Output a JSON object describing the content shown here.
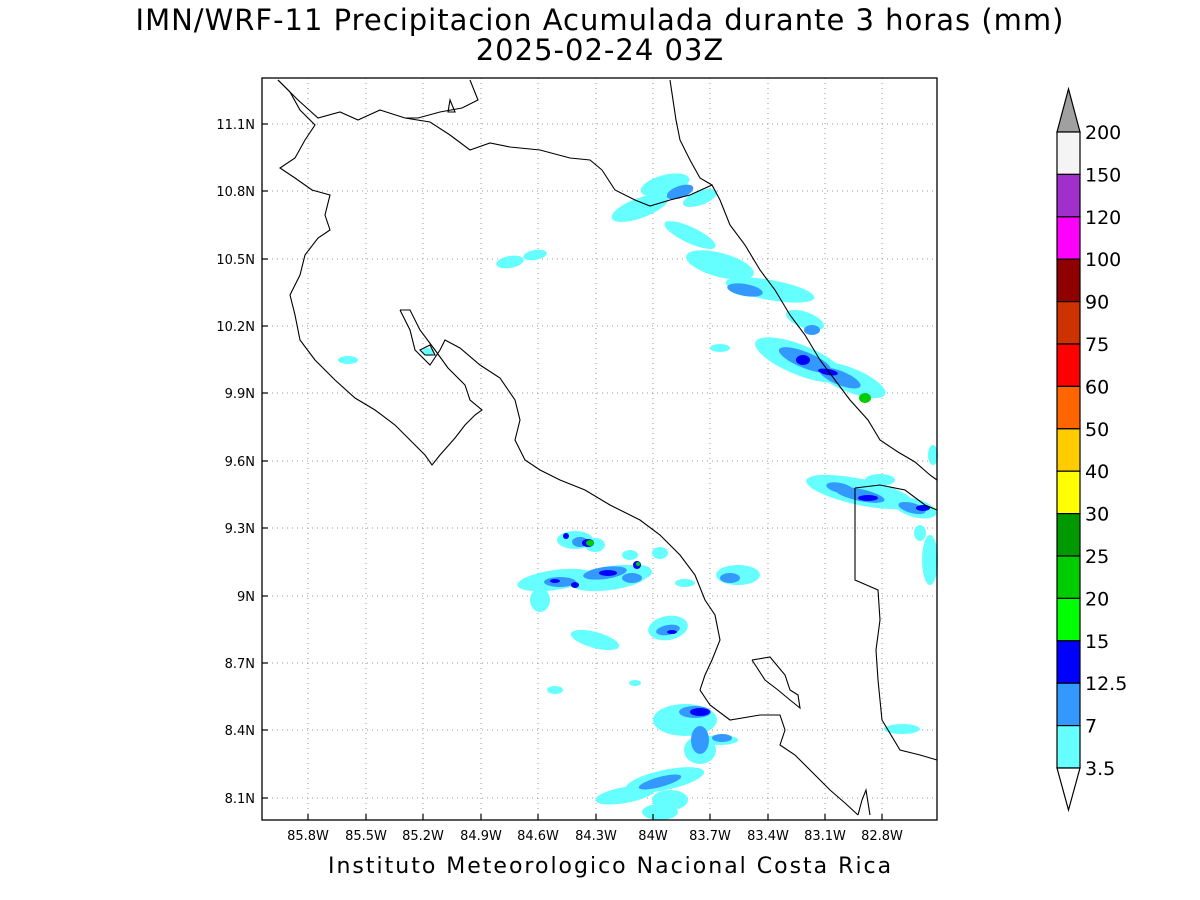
{
  "title": {
    "line1": "IMN/WRF-11 Precipitacion Acumulada durante 3 horas (mm)",
    "line2": "2025-02-24 03Z"
  },
  "credit": "Instituto Meteorologico Nacional Costa Rica",
  "map": {
    "lon_range": [
      -86.0,
      -82.6
    ],
    "lat_range": [
      8.0,
      11.3
    ],
    "lon_ticks": [
      "85.8W",
      "85.5W",
      "85.2W",
      "84.9W",
      "84.6W",
      "84.3W",
      "84W",
      "83.7W",
      "83.4W",
      "83.1W",
      "82.8W"
    ],
    "lat_ticks": [
      "11.1N",
      "10.8N",
      "10.5N",
      "10.2N",
      "9.9N",
      "9.6N",
      "9.3N",
      "9N",
      "8.7N",
      "8.4N",
      "8.1N"
    ],
    "grid": "dotted"
  },
  "colorbar": {
    "levels": [
      "200",
      "150",
      "120",
      "100",
      "90",
      "75",
      "60",
      "50",
      "40",
      "30",
      "25",
      "20",
      "15",
      "12.5",
      "7",
      "3.5"
    ],
    "colors": [
      "#f4f4f4",
      "#a02fcc",
      "#ff00ff",
      "#8f0000",
      "#cc3300",
      "#ff0000",
      "#ff6600",
      "#ffcc00",
      "#ffff00",
      "#009900",
      "#00cc00",
      "#00ff00",
      "#0000ff",
      "#3399ff",
      "#66ffff"
    ],
    "over_color": "#a0a0a0",
    "under_color": "#ffffff"
  },
  "precip_colors": {
    "light": "#66ffff",
    "moderate": "#3399ff",
    "heavy": "#0000ff",
    "intense": "#00cc00"
  }
}
